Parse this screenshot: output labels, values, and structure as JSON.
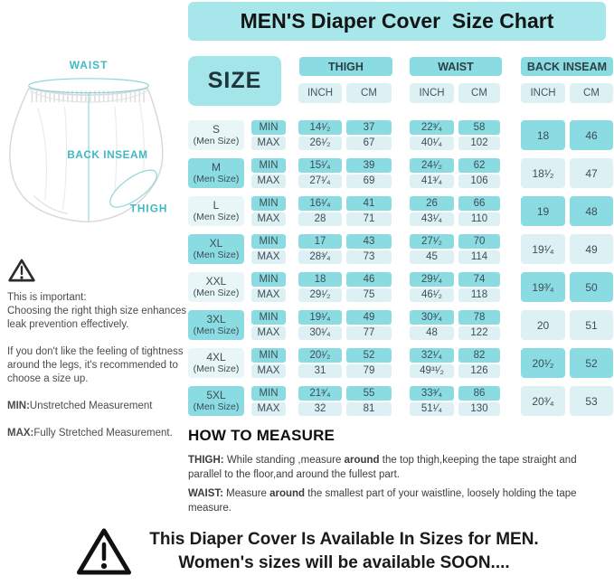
{
  "colors": {
    "banner": "#a7e6ea",
    "teal": "#8adce2",
    "size-box": "#a3e5e9",
    "light-cell": "#ddf1f4",
    "label-light": "#e9f6f7",
    "table-text": "#3e4d54",
    "illus-teal": "#3fb9c3",
    "body-text": "#4b4b4b"
  },
  "title": "MEN'S Diaper Cover  Size Chart",
  "illustration": {
    "waist": "WAIST",
    "back_inseam": "BACK INSEAM",
    "thigh": "THIGH"
  },
  "notes": {
    "para1": "This is important:\nChoosing the right thigh size enhances\nleak prevention effectively.",
    "para2": "If you don't like the feeling of tightness\naround the legs, it's recommended to\nchoose a size up.",
    "min": {
      "segments": [
        {
          "t": "MIN:",
          "b": true
        },
        {
          "t": "Unstretched Measurement",
          "b": false
        }
      ]
    },
    "max": {
      "segments": [
        {
          "t": "MAX:",
          "b": true
        },
        {
          "t": "Fully Stretched Measurement.",
          "b": false
        }
      ]
    }
  },
  "table": {
    "size_header": "SIZE",
    "col_groups": [
      {
        "label": "THIGH"
      },
      {
        "label": "WAIST"
      },
      {
        "label": "BACK INSEAM"
      }
    ],
    "units": {
      "inch": "INCH",
      "cm": "CM"
    },
    "min_label": "MIN",
    "max_label": "MAX",
    "size_sub": "(Men Size)",
    "rows": [
      {
        "size": "S",
        "thigh_min_inch": "14¹⁄₂",
        "thigh_min_cm": "37",
        "thigh_max_inch": "26¹⁄₂",
        "thigh_max_cm": "67",
        "waist_min_inch": "22³⁄₄",
        "waist_min_cm": "58",
        "waist_max_inch": "40¹⁄₄",
        "waist_max_cm": "102",
        "bi_inch": "18",
        "bi_cm": "46"
      },
      {
        "size": "M",
        "thigh_min_inch": "15¹⁄₄",
        "thigh_min_cm": "39",
        "thigh_max_inch": "27¹⁄₄",
        "thigh_max_cm": "69",
        "waist_min_inch": "24¹⁄₂",
        "waist_min_cm": "62",
        "waist_max_inch": "41³⁄₄",
        "waist_max_cm": "106",
        "bi_inch": "18¹⁄₂",
        "bi_cm": "47"
      },
      {
        "size": "L",
        "thigh_min_inch": "16¹⁄₄",
        "thigh_min_cm": "41",
        "thigh_max_inch": "28",
        "thigh_max_cm": "71",
        "waist_min_inch": "26",
        "waist_min_cm": "66",
        "waist_max_inch": "43¹⁄₄",
        "waist_max_cm": "110",
        "bi_inch": "19",
        "bi_cm": "48"
      },
      {
        "size": "XL",
        "thigh_min_inch": "17",
        "thigh_min_cm": "43",
        "thigh_max_inch": "28³⁄₄",
        "thigh_max_cm": "73",
        "waist_min_inch": "27¹⁄₂",
        "waist_min_cm": "70",
        "waist_max_inch": "45",
        "waist_max_cm": "114",
        "bi_inch": "19¹⁄₄",
        "bi_cm": "49"
      },
      {
        "size": "XXL",
        "thigh_min_inch": "18",
        "thigh_min_cm": "46",
        "thigh_max_inch": "29¹⁄₂",
        "thigh_max_cm": "75",
        "waist_min_inch": "29¹⁄₄",
        "waist_min_cm": "74",
        "waist_max_inch": "46¹⁄₂",
        "waist_max_cm": "118",
        "bi_inch": "19³⁄₄",
        "bi_cm": "50"
      },
      {
        "size": "3XL",
        "thigh_min_inch": "19¹⁄₄",
        "thigh_min_cm": "49",
        "thigh_max_inch": "30¹⁄₄",
        "thigh_max_cm": "77",
        "waist_min_inch": "30³⁄₄",
        "waist_min_cm": "78",
        "waist_max_inch": "48",
        "waist_max_cm": "122",
        "bi_inch": "20",
        "bi_cm": "51"
      },
      {
        "size": "4XL",
        "thigh_min_inch": "20¹⁄₂",
        "thigh_min_cm": "52",
        "thigh_max_inch": "31",
        "thigh_max_cm": "79",
        "waist_min_inch": "32¹⁄₄",
        "waist_min_cm": "82",
        "waist_max_inch": "49³¹⁄₂",
        "waist_max_cm": "126",
        "bi_inch": "20¹⁄₂",
        "bi_cm": "52"
      },
      {
        "size": "5XL",
        "thigh_min_inch": "21³⁄₄",
        "thigh_min_cm": "55",
        "thigh_max_inch": "32",
        "thigh_max_cm": "81",
        "waist_min_inch": "33³⁄₄",
        "waist_min_cm": "86",
        "waist_max_inch": "51¹⁄₄",
        "waist_max_cm": "130",
        "bi_inch": "20³⁄₄",
        "bi_cm": "53"
      }
    ]
  },
  "how_to_measure": {
    "heading": "HOW TO MEASURE",
    "thigh_line": {
      "segments": [
        {
          "t": "THIGH: ",
          "b": true
        },
        {
          "t": "While standing ,measure ",
          "b": false
        },
        {
          "t": "around",
          "b": true
        },
        {
          "t": " the top thigh,keeping the tape straight and parallel to the floor,and around the fullest part.",
          "b": false
        }
      ]
    },
    "waist_line": {
      "segments": [
        {
          "t": "WAIST: ",
          "b": true
        },
        {
          "t": "Measure ",
          "b": false
        },
        {
          "t": "around",
          "b": true
        },
        {
          "t": " the smallest part of your waistline, loosely holding the tape measure.",
          "b": false
        }
      ]
    }
  },
  "footer": {
    "line1": "This Diaper Cover Is Available In Sizes for MEN.",
    "line2": "Women's sizes will be available SOON...."
  }
}
